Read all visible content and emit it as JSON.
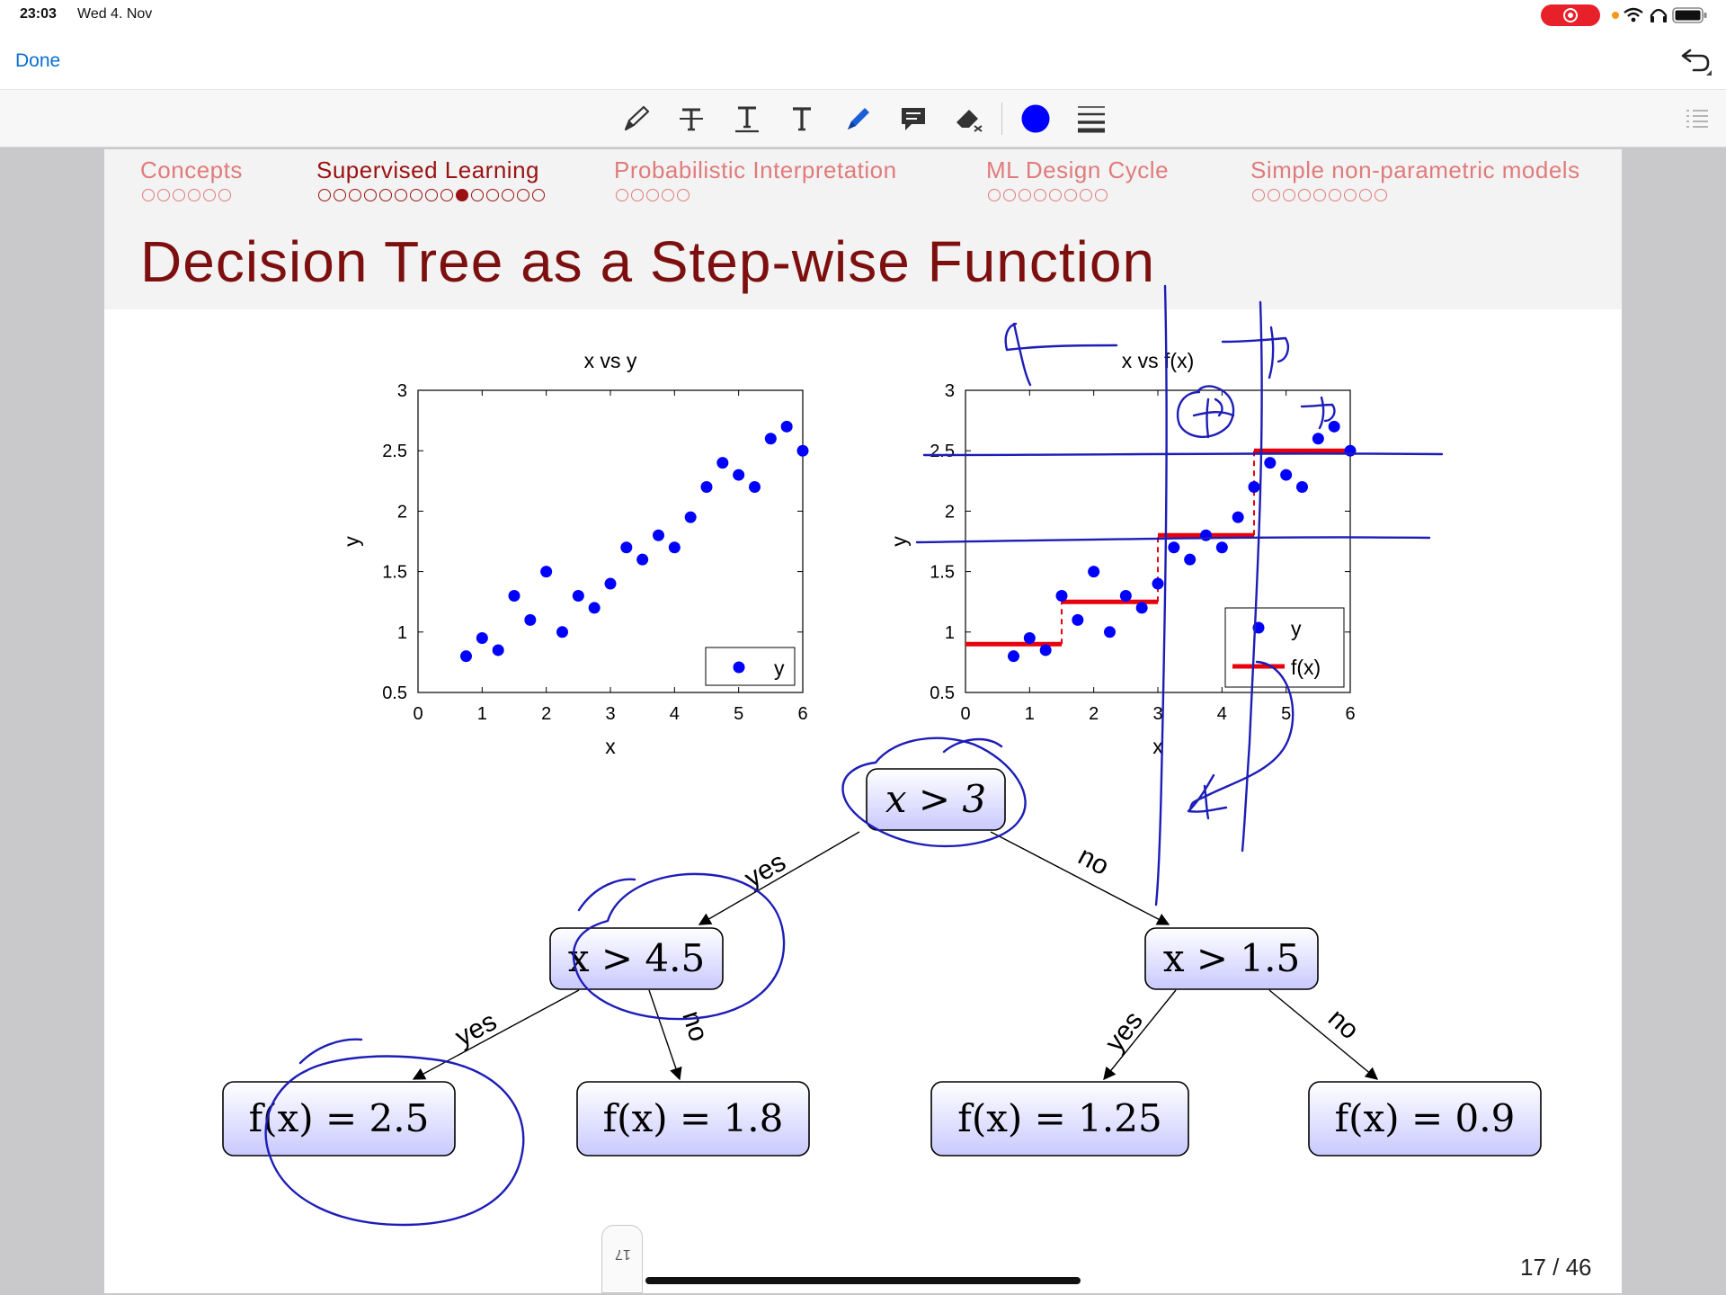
{
  "status_bar": {
    "time": "23:03",
    "date": "Wed 4. Nov"
  },
  "nav": {
    "done_label": "Done"
  },
  "toolbar": {
    "tools": [
      "pencil-icon",
      "text-strike-icon",
      "text-underline-icon",
      "text-icon",
      "highlighter-icon",
      "comment-icon",
      "eraser-icon",
      "color-picker",
      "line-width-icon"
    ],
    "accent_color": "#0000ff"
  },
  "sections": [
    {
      "label": "Concepts",
      "dots": 6,
      "current": -1,
      "active": false
    },
    {
      "label": "Supervised Learning",
      "dots": 15,
      "current": 9,
      "active": true
    },
    {
      "label": "Probabilistic Interpretation",
      "dots": 5,
      "current": -1,
      "active": false
    },
    {
      "label": "ML Design Cycle",
      "dots": 8,
      "current": -1,
      "active": false
    },
    {
      "label": "Simple non-parametric models",
      "dots": 9,
      "current": -1,
      "active": false
    }
  ],
  "slide": {
    "title": "Decision Tree as a Step-wise Function",
    "page": "17 / 46",
    "page_tab": "17"
  },
  "chart_data": [
    {
      "type": "scatter",
      "title": "x vs y",
      "xlabel": "x",
      "ylabel": "y",
      "xlim": [
        0,
        6
      ],
      "ylim": [
        0.5,
        3
      ],
      "xticks": [
        "0",
        "1",
        "2",
        "3",
        "4",
        "5",
        "6"
      ],
      "yticks": [
        "0.5",
        "1",
        "1.5",
        "2",
        "2.5",
        "3"
      ],
      "legend": {
        "position": "bottom-right",
        "entries": [
          "y"
        ]
      },
      "grid": false,
      "series": [
        {
          "name": "y",
          "color": "#0000ff",
          "x": [
            0.75,
            1.0,
            1.25,
            1.5,
            1.75,
            2.0,
            2.25,
            2.5,
            2.75,
            3.0,
            3.25,
            3.5,
            3.75,
            4.0,
            4.25,
            4.5,
            4.75,
            5.0,
            5.25,
            5.5,
            5.75,
            6.0
          ],
          "y": [
            0.8,
            0.95,
            0.85,
            1.3,
            1.1,
            1.5,
            1.0,
            1.3,
            1.2,
            1.4,
            1.7,
            1.6,
            1.8,
            1.7,
            1.95,
            2.2,
            2.4,
            2.3,
            2.2,
            2.6,
            2.7,
            2.5
          ]
        }
      ]
    },
    {
      "type": "scatter",
      "title": "x vs f(x)",
      "xlabel": "x",
      "ylabel": "y",
      "xlim": [
        0,
        6
      ],
      "ylim": [
        0.5,
        3
      ],
      "xticks": [
        "0",
        "1",
        "2",
        "3",
        "4",
        "5",
        "6"
      ],
      "yticks": [
        "0.5",
        "1",
        "1.5",
        "2",
        "2.5",
        "3"
      ],
      "legend": {
        "position": "bottom-right",
        "entries": [
          "y",
          "f(x)"
        ]
      },
      "grid": false,
      "series": [
        {
          "name": "y",
          "color": "#0000ff",
          "x": [
            0.75,
            1.0,
            1.25,
            1.5,
            1.75,
            2.0,
            2.25,
            2.5,
            2.75,
            3.0,
            3.25,
            3.5,
            3.75,
            4.0,
            4.25,
            4.5,
            4.75,
            5.0,
            5.25,
            5.5,
            5.75,
            6.0
          ],
          "y": [
            0.8,
            0.95,
            0.85,
            1.3,
            1.1,
            1.5,
            1.0,
            1.3,
            1.2,
            1.4,
            1.7,
            1.6,
            1.8,
            1.7,
            1.95,
            2.2,
            2.4,
            2.3,
            2.2,
            2.6,
            2.7,
            2.5
          ]
        },
        {
          "name": "f(x)",
          "color": "#e8000b",
          "steps": [
            {
              "x0": 0.0,
              "x1": 1.5,
              "y": 0.9
            },
            {
              "x0": 1.5,
              "x1": 3.0,
              "y": 1.25
            },
            {
              "x0": 3.0,
              "x1": 4.5,
              "y": 1.8
            },
            {
              "x0": 4.5,
              "x1": 6.0,
              "y": 2.5
            }
          ]
        }
      ]
    }
  ],
  "tree": {
    "root": "x > 3",
    "left": "x > 4.5",
    "right": "x > 1.5",
    "leaf_ll": "f(x) = 2.5",
    "leaf_lr": "f(x) = 1.8",
    "leaf_rl": "f(x) = 1.25",
    "leaf_rr": "f(x) = 0.9",
    "edge_yes": "yes",
    "edge_no": "no"
  }
}
